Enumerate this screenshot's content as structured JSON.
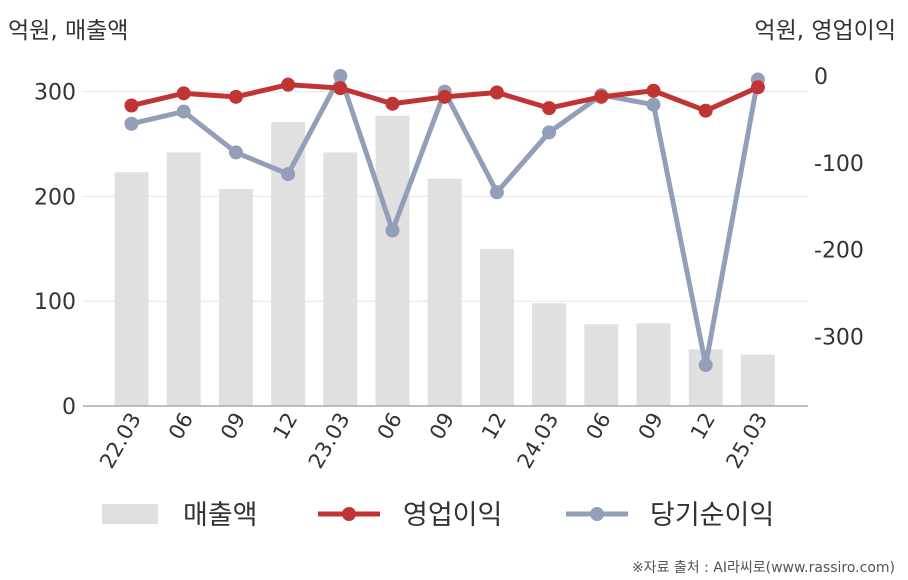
{
  "chart_data": {
    "type": "bar",
    "left_unit_label": "억원, 매출액",
    "right_unit_label": "억원, 영업이익",
    "categories": [
      "22.03",
      "06",
      "09",
      "12",
      "23.03",
      "06",
      "09",
      "12",
      "24.03",
      "06",
      "09",
      "12",
      "25.03"
    ],
    "left_axis": {
      "ticks": [
        "0",
        "100",
        "200",
        "300"
      ],
      "range": [
        0,
        300
      ]
    },
    "right_axis": {
      "ticks": [
        "0",
        "-100",
        "-200",
        "-300"
      ],
      "range": [
        -300,
        0
      ]
    },
    "series": [
      {
        "name": "매출액",
        "type": "bar",
        "axis": "left",
        "color": "#e0e0e0",
        "values": [
          223,
          242,
          207,
          271,
          242,
          277,
          217,
          150,
          98,
          78,
          79,
          54,
          49
        ]
      },
      {
        "name": "영업이익",
        "type": "line",
        "axis": "right",
        "color": "#c03434",
        "values": [
          -34,
          -20,
          -24,
          -10,
          -14,
          -32,
          -24,
          -19,
          -37,
          -24,
          -17,
          -40,
          -13
        ]
      },
      {
        "name": "당기순이익",
        "type": "line",
        "axis": "right",
        "color": "#939eb8",
        "values": [
          -55,
          -41,
          -88,
          -113,
          0,
          -178,
          -18,
          -134,
          -65,
          -22,
          -33,
          -333,
          -4
        ]
      }
    ],
    "source": "※자료 출처 : AI라씨로(www.rassiro.com)"
  }
}
